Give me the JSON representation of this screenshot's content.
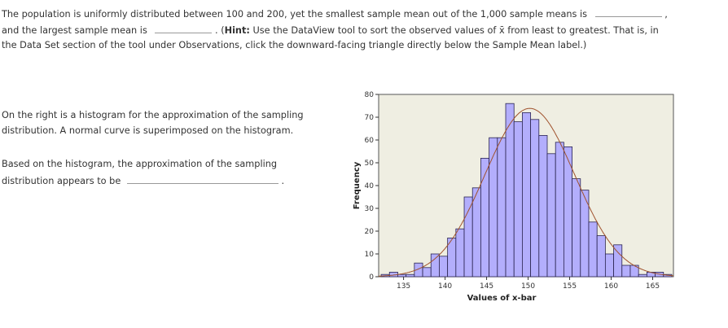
{
  "question": {
    "line1": "The population is uniformly distributed between 100 and 200, yet the smallest sample mean out of the 1,000 sample means is",
    "line1_end": ",",
    "line2_a": "and the largest sample mean is",
    "line2_b": ". (",
    "hint_label": "Hint:",
    "line2_c": " Use the DataView tool to sort the observed values of x̄ from least to greatest. That is, in",
    "line3": "the Data Set section of the tool under Observations, click the downward-facing triangle directly below the Sample Mean label.)"
  },
  "left": {
    "p1_l1": "On the right is a histogram for the approximation of the sampling",
    "p1_l2": "distribution. A normal curve is superimposed on the histogram.",
    "p2_l1": "Based on the histogram, the approximation of the sampling",
    "p2_l2": "distribution appears to be",
    "p2_end": "."
  },
  "chart_data": {
    "type": "bar",
    "title": "",
    "xlabel": "Values of x-bar",
    "ylabel": "Frequency",
    "xlim": [
      132,
      167.5
    ],
    "ylim": [
      0,
      80
    ],
    "xticks": [
      135,
      140,
      145,
      150,
      155,
      160,
      165
    ],
    "yticks": [
      0,
      10,
      20,
      30,
      40,
      50,
      60,
      70,
      80
    ],
    "bin_start": 132.3,
    "bin_width": 1,
    "values": [
      1,
      2,
      1,
      1,
      6,
      4,
      10,
      9,
      17,
      21,
      35,
      39,
      52,
      61,
      61,
      76,
      68,
      72,
      69,
      62,
      54,
      59,
      57,
      43,
      38,
      24,
      18,
      10,
      14,
      5,
      5,
      1,
      2,
      2,
      1
    ],
    "normal_curve": {
      "mean": 150.2,
      "sd": 5.4,
      "n": 1000
    },
    "colors": {
      "bar": "#b3aefc",
      "bar_edge": "#2a2450",
      "plot_bg": "#efeee2",
      "curve": "#a0522d"
    }
  }
}
